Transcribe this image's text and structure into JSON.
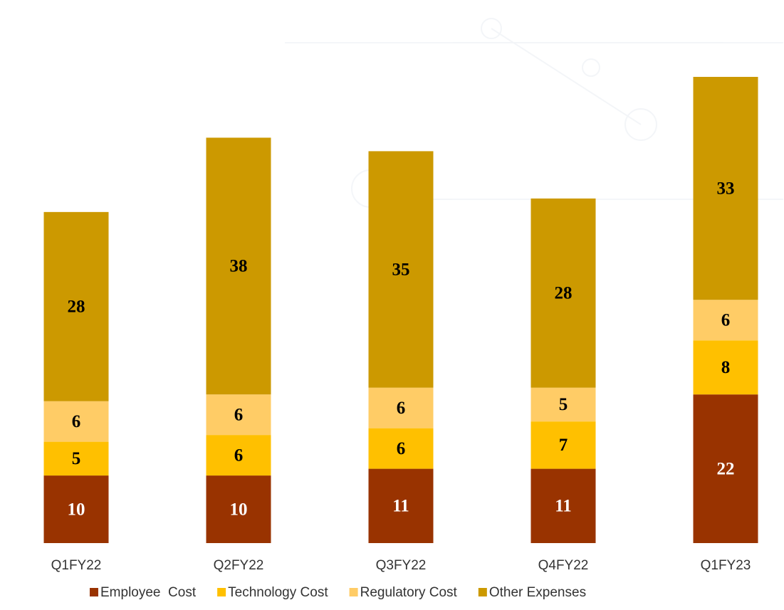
{
  "chart_data": {
    "type": "stacked_bar",
    "categories": [
      "Q1FY22",
      "Q2FY22",
      "Q3FY22",
      "Q4FY22",
      "Q1FY23"
    ],
    "series": [
      {
        "name": "Employee  Cost",
        "color": "#993300",
        "values": [
          10,
          10,
          11,
          11,
          22
        ]
      },
      {
        "name": "Technology Cost",
        "color": "#ffc000",
        "values": [
          5,
          6,
          6,
          7,
          8
        ]
      },
      {
        "name": "Regulatory Cost",
        "color": "#ffcc66",
        "values": [
          6,
          6,
          6,
          5,
          6
        ]
      },
      {
        "name": "Other Expenses",
        "color": "#cc9900",
        "values": [
          28,
          38,
          35,
          28,
          33
        ]
      }
    ],
    "legend": "bottom"
  }
}
